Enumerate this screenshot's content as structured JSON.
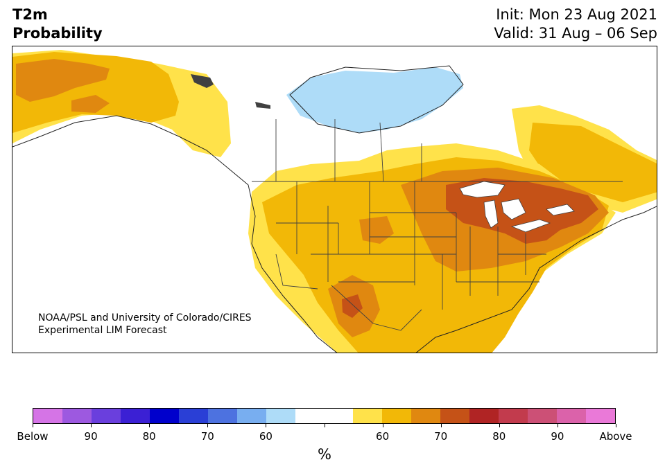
{
  "header": {
    "title_line1": "T2m",
    "title_line2": "Probability",
    "init": "Init: Mon 23 Aug 2021",
    "valid": "Valid: 31 Aug – 06 Sep"
  },
  "map": {
    "credit_line1": "NOAA/PSL and University of Colorado/CIRES",
    "credit_line2": "Experimental LIM Forecast"
  },
  "colorbar": {
    "unit": "%",
    "colors": [
      "#d574e6",
      "#9d59e0",
      "#6a3fdd",
      "#3b20d4",
      "#0000cc",
      "#2a3fd6",
      "#4d72e0",
      "#78aef0",
      "#aedcf8",
      "#ffffff",
      "#ffffff",
      "#ffe24a",
      "#f2b807",
      "#e08810",
      "#c55217",
      "#b02424",
      "#c23b4d",
      "#cc5076",
      "#db62aa",
      "#ea79d8"
    ],
    "labels": [
      "Below",
      "90",
      "80",
      "70",
      "60",
      "60",
      "70",
      "80",
      "90",
      "Above"
    ]
  },
  "palette": {
    "above_55_60": "#ffe24a",
    "above_60_65": "#f2b807",
    "above_65_70": "#e08810",
    "above_70_75": "#c55217",
    "above_75_80": "#b02424",
    "below_55_60": "#aedcf8",
    "lakes": "#ffffff",
    "borders": "#404040"
  }
}
